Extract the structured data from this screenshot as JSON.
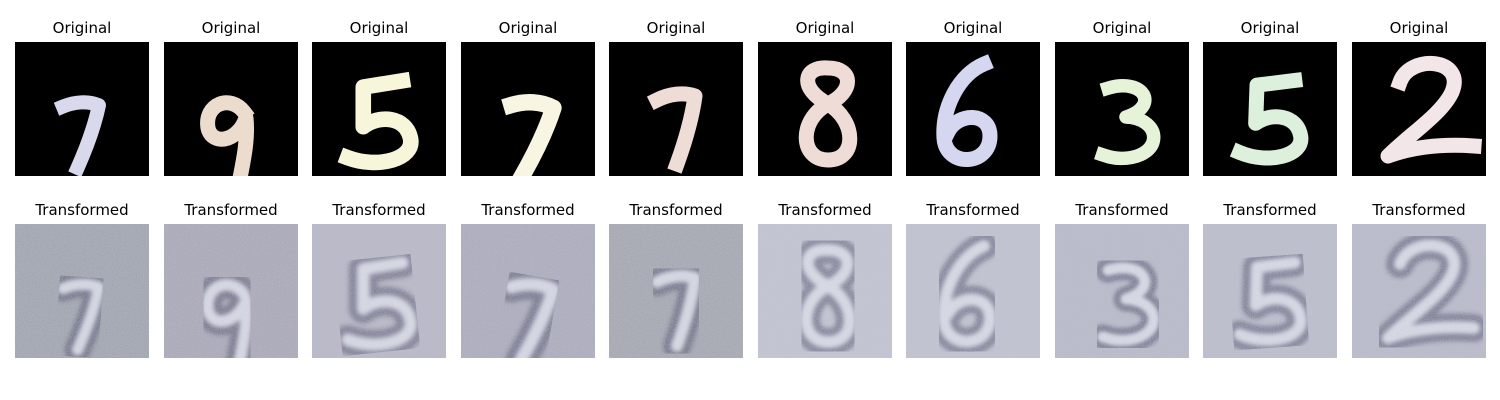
{
  "figure": {
    "rows": [
      {
        "key": "original",
        "panel_title": "Original",
        "panels": [
          {
            "digit": "7",
            "color": "#d9d9ee"
          },
          {
            "digit": "9",
            "color": "#ecdcce"
          },
          {
            "digit": "5",
            "color": "#f7f5da"
          },
          {
            "digit": "7",
            "color": "#f8f6e2"
          },
          {
            "digit": "7",
            "color": "#eedcd6"
          },
          {
            "digit": "8",
            "color": "#efdcd6"
          },
          {
            "digit": "6",
            "color": "#d5d6ef"
          },
          {
            "digit": "3",
            "color": "#e7f3d8"
          },
          {
            "digit": "5",
            "color": "#dcf0dc"
          },
          {
            "digit": "2",
            "color": "#f2e6e8"
          }
        ]
      },
      {
        "key": "transformed",
        "panel_title": "Transformed",
        "panels": [
          {
            "digit": "7"
          },
          {
            "digit": "9"
          },
          {
            "digit": "5"
          },
          {
            "digit": "7"
          },
          {
            "digit": "7"
          },
          {
            "digit": "8"
          },
          {
            "digit": "6"
          },
          {
            "digit": "3"
          },
          {
            "digit": "5"
          },
          {
            "digit": "2"
          }
        ]
      }
    ]
  }
}
